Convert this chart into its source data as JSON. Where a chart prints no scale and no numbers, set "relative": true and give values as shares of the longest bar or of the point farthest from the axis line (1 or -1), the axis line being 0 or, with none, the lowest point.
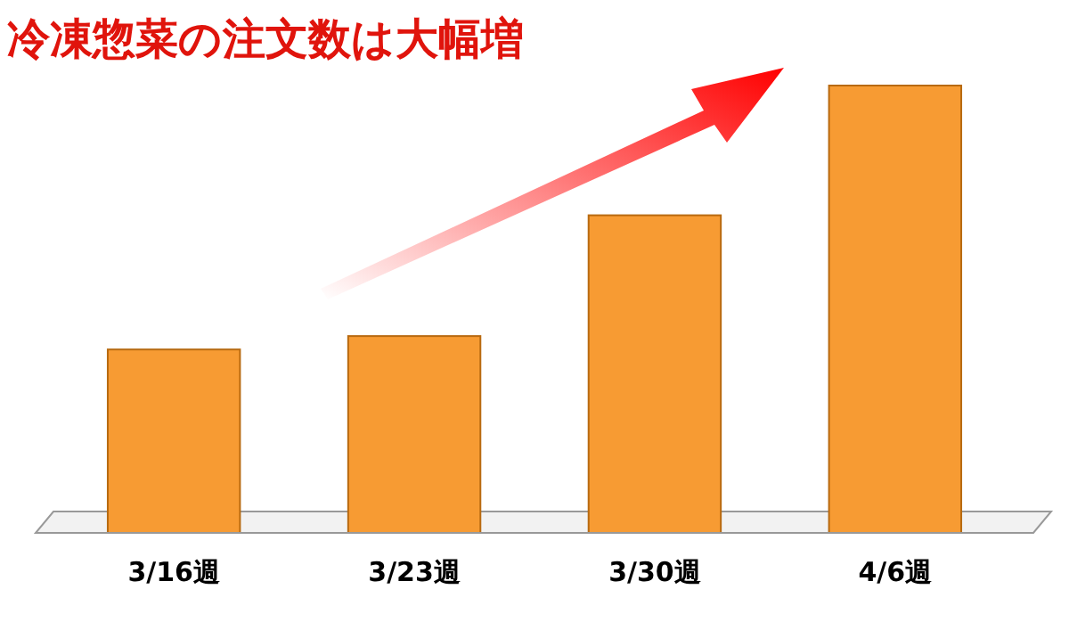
{
  "chart_data": {
    "type": "bar",
    "title": "冷凍惣菜の注文数は大幅増",
    "relative": true,
    "categories": [
      "3/16週",
      "3/23週",
      "3/30週",
      "4/6週"
    ],
    "values": [
      0.41,
      0.44,
      0.71,
      1
    ],
    "color": "#f79b33"
  }
}
